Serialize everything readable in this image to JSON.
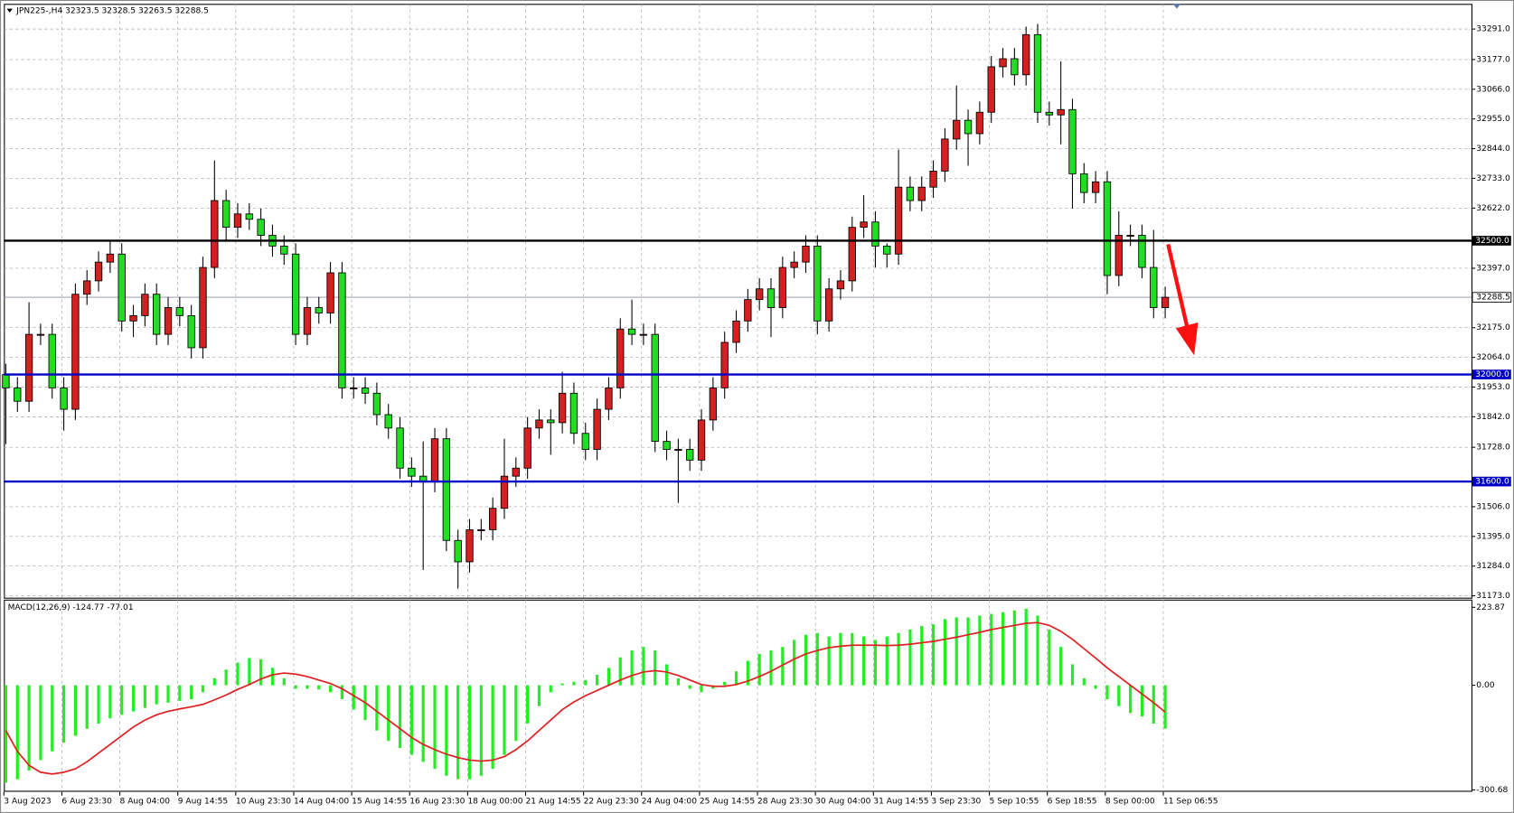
{
  "chart_data": {
    "type": "candlestick",
    "title": "JPN225-,H4  32323.5 32328.5 32263.5 32288.5",
    "categories": [
      "3 Aug 2023",
      null,
      null,
      null,
      null,
      "6 Aug 23:30",
      null,
      null,
      null,
      null,
      "8 Aug 04:00",
      null,
      null,
      null,
      null,
      "9 Aug 14:55",
      null,
      null,
      null,
      null,
      "10 Aug 23:30",
      null,
      null,
      null,
      null,
      "14 Aug 04:00",
      null,
      null,
      null,
      null,
      "15 Aug 14:55",
      null,
      null,
      null,
      null,
      "16 Aug 23:30",
      null,
      null,
      null,
      null,
      "18 Aug 00:00",
      null,
      null,
      null,
      null,
      "21 Aug 14:55",
      null,
      null,
      null,
      null,
      "22 Aug 23:30",
      null,
      null,
      null,
      null,
      "24 Aug 04:00",
      null,
      null,
      null,
      null,
      "25 Aug 14:55",
      null,
      null,
      null,
      null,
      "28 Aug 23:30",
      null,
      null,
      null,
      null,
      "30 Aug 04:00",
      null,
      null,
      null,
      null,
      "31 Aug 14:55",
      null,
      null,
      null,
      null,
      "3 Sep 23:30",
      null,
      null,
      null,
      null,
      "5 Sep 10:55",
      null,
      null,
      null,
      null,
      "6 Sep 18:55",
      null,
      null,
      null,
      null,
      "8 Sep 00:00",
      null,
      null,
      null,
      null,
      "11 Sep 06:55"
    ],
    "open": [
      32000,
      31950,
      31900,
      32150,
      32150,
      31950,
      31870,
      32300,
      32350,
      32420,
      32450,
      32200,
      32220,
      32300,
      32150,
      32250,
      32220,
      32100,
      32400,
      32650,
      32550,
      32600,
      32580,
      32520,
      32480,
      32450,
      32150,
      32250,
      32230,
      32380,
      31950,
      31950,
      31930,
      31850,
      31800,
      31650,
      31620,
      31600,
      31760,
      31380,
      31300,
      31420,
      31420,
      31500,
      31620,
      31650,
      31800,
      31830,
      31820,
      31930,
      31780,
      31720,
      31870,
      31950,
      32170,
      32150,
      32150,
      31750,
      31720,
      31720,
      31680,
      31830,
      31950,
      32120,
      32200,
      32280,
      32320,
      32250,
      32400,
      32420,
      32480,
      32200,
      32320,
      32350,
      32550,
      32570,
      32480,
      32450,
      32700,
      32650,
      32700,
      32760,
      32880,
      32950,
      32900,
      32980,
      33150,
      33180,
      33120,
      33270,
      32980,
      32970,
      32990,
      32750,
      32680,
      32720,
      32370,
      32520,
      32520,
      32400,
      32250
    ],
    "high": [
      32040,
      31990,
      32270,
      32190,
      32190,
      31990,
      32340,
      32390,
      32460,
      32500,
      32490,
      32260,
      32340,
      32340,
      32290,
      32290,
      32260,
      32440,
      32800,
      32690,
      32640,
      32640,
      32620,
      32560,
      32520,
      32490,
      32290,
      32290,
      32420,
      32420,
      31990,
      31990,
      31970,
      31890,
      31840,
      31690,
      31750,
      31800,
      31800,
      31420,
      31460,
      31460,
      31540,
      31760,
      31690,
      31840,
      31870,
      31870,
      32010,
      31970,
      31820,
      31910,
      31990,
      32210,
      32280,
      32190,
      32190,
      31790,
      31760,
      31760,
      31870,
      31990,
      32160,
      32240,
      32320,
      32360,
      32360,
      32440,
      32460,
      32520,
      32520,
      32360,
      32390,
      32590,
      32670,
      32610,
      32490,
      32840,
      32740,
      32740,
      32800,
      32920,
      33080,
      32990,
      33020,
      33190,
      33220,
      33220,
      33300,
      33310,
      33020,
      33170,
      33030,
      32790,
      32760,
      32760,
      32610,
      32560,
      32560,
      32540,
      32328.5
    ],
    "low": [
      31740,
      31860,
      31860,
      32110,
      31910,
      31790,
      31830,
      32260,
      32310,
      32380,
      32160,
      32140,
      32180,
      32110,
      32110,
      32180,
      32060,
      32060,
      32360,
      32500,
      32510,
      32540,
      32480,
      32440,
      32410,
      32110,
      32110,
      32190,
      32190,
      31910,
      31910,
      31890,
      31810,
      31760,
      31610,
      31580,
      31270,
      31560,
      31340,
      31200,
      31260,
      31380,
      31380,
      31460,
      31580,
      31610,
      31760,
      31700,
      31780,
      31740,
      31680,
      31680,
      31830,
      31910,
      32110,
      32110,
      31710,
      31680,
      31520,
      31640,
      31640,
      31790,
      31910,
      32080,
      32160,
      32240,
      32140,
      32210,
      32360,
      32380,
      32150,
      32160,
      32280,
      32310,
      32510,
      32400,
      32400,
      32410,
      32610,
      32610,
      32660,
      32720,
      32840,
      32780,
      32860,
      32940,
      33110,
      33080,
      33080,
      32940,
      32930,
      32860,
      32620,
      32640,
      32640,
      32300,
      32330,
      32480,
      32360,
      32210,
      32210
    ],
    "close": [
      31950,
      31900,
      32150,
      32150,
      31950,
      31870,
      32300,
      32350,
      32420,
      32450,
      32200,
      32220,
      32300,
      32150,
      32250,
      32220,
      32100,
      32400,
      32650,
      32550,
      32600,
      32580,
      32520,
      32480,
      32450,
      32150,
      32250,
      32230,
      32380,
      31950,
      31950,
      31930,
      31850,
      31800,
      31650,
      31620,
      31600,
      31760,
      31380,
      31300,
      31420,
      31420,
      31500,
      31620,
      31650,
      31800,
      31830,
      31820,
      31930,
      31780,
      31720,
      31870,
      31950,
      32170,
      32150,
      32150,
      31750,
      31720,
      31720,
      31680,
      31830,
      31950,
      32120,
      32200,
      32280,
      32320,
      32250,
      32400,
      32420,
      32480,
      32200,
      32320,
      32350,
      32550,
      32570,
      32480,
      32450,
      32700,
      32650,
      32700,
      32760,
      32880,
      32950,
      32900,
      32980,
      33150,
      33180,
      33120,
      33270,
      32980,
      32970,
      32990,
      32750,
      32680,
      32720,
      32370,
      32520,
      32520,
      32400,
      32250,
      32288.5
    ],
    "up_color": "#d42020",
    "down_color": "#22dd22",
    "ylim": [
      31166,
      33385
    ],
    "yticks": [
      {
        "value": 33291,
        "label": "33291.0"
      },
      {
        "value": 33177,
        "label": "33177.0"
      },
      {
        "value": 33066,
        "label": "33066.0"
      },
      {
        "value": 32955,
        "label": "32955.0"
      },
      {
        "value": 32844,
        "label": "32844.0"
      },
      {
        "value": 32733,
        "label": "32733.0"
      },
      {
        "value": 32622,
        "label": "32622.0"
      },
      {
        "value": 32397,
        "label": "32397.0"
      },
      {
        "value": 32175,
        "label": "32175.0"
      },
      {
        "value": 32064,
        "label": "32064.0"
      },
      {
        "value": 31953,
        "label": "31953.0"
      },
      {
        "value": 31842,
        "label": "31842.0"
      },
      {
        "value": 31728,
        "label": "31728.0"
      },
      {
        "value": 31506,
        "label": "31506.0"
      },
      {
        "value": 31395,
        "label": "31395.0"
      },
      {
        "value": 31284,
        "label": "31284.0"
      },
      {
        "value": 31173,
        "label": "31173.0"
      }
    ],
    "levels": [
      {
        "value": 32500,
        "label": "32500.0",
        "color": "#000000"
      },
      {
        "value": 32000,
        "label": "32000.0",
        "color": "#0000c8"
      },
      {
        "value": 31600,
        "label": "31600.0",
        "color": "#0000c8"
      }
    ],
    "last_price": 32288.5,
    "grid": true,
    "indicator": {
      "type": "macd",
      "title": "MACD(12,26,9) -124.77 -77.01",
      "histogram_color": "#22ee22",
      "signal_color": "#e02020",
      "histogram": [
        -280,
        -270,
        -245,
        -215,
        -190,
        -165,
        -145,
        -125,
        -110,
        -95,
        -85,
        -75,
        -65,
        -55,
        -50,
        -45,
        -40,
        -20,
        20,
        45,
        65,
        78,
        75,
        50,
        20,
        -10,
        -10,
        -12,
        -20,
        -40,
        -70,
        -100,
        -130,
        -160,
        -180,
        -200,
        -220,
        -240,
        -260,
        -270,
        -270,
        -260,
        -240,
        -200,
        -160,
        -110,
        -60,
        -20,
        5,
        10,
        15,
        30,
        50,
        80,
        100,
        110,
        100,
        60,
        20,
        -10,
        -20,
        -10,
        10,
        40,
        70,
        90,
        100,
        110,
        130,
        145,
        150,
        140,
        150,
        150,
        140,
        130,
        140,
        150,
        160,
        170,
        175,
        190,
        195,
        195,
        200,
        205,
        210,
        215,
        220,
        200,
        160,
        110,
        60,
        20,
        -10,
        -40,
        -60,
        -80,
        -90,
        -110,
        -124.77
      ],
      "signal": [
        -130,
        -190,
        -230,
        -250,
        -255,
        -250,
        -240,
        -220,
        -195,
        -170,
        -145,
        -120,
        -100,
        -85,
        -75,
        -68,
        -62,
        -55,
        -42,
        -28,
        -12,
        2,
        18,
        30,
        35,
        32,
        25,
        15,
        5,
        -10,
        -30,
        -50,
        -75,
        -100,
        -125,
        -150,
        -170,
        -185,
        -198,
        -208,
        -215,
        -218,
        -215,
        -205,
        -185,
        -160,
        -130,
        -100,
        -70,
        -48,
        -30,
        -15,
        0,
        15,
        28,
        38,
        42,
        38,
        28,
        15,
        2,
        -3,
        -3,
        2,
        12,
        25,
        40,
        58,
        75,
        90,
        100,
        108,
        112,
        115,
        115,
        115,
        114,
        115,
        118,
        122,
        126,
        132,
        138,
        145,
        152,
        160,
        166,
        172,
        178,
        180,
        172,
        155,
        132,
        105,
        78,
        50,
        25,
        0,
        -25,
        -50,
        -77.01
      ],
      "ylim": [
        -306,
        246
      ],
      "yticks": [
        223.87,
        {
          "value": 0,
          "label": "0.00"
        },
        -300.68
      ]
    }
  }
}
